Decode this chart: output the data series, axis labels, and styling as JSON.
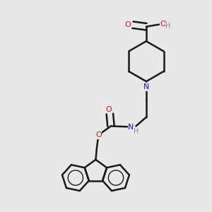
{
  "bg_color": "#e8e8e8",
  "bond_color": "#1a1a1a",
  "N_color": "#1010dd",
  "O_color": "#dd1010",
  "H_color": "#888888",
  "bond_width": 1.8,
  "figsize": [
    3.0,
    3.0
  ],
  "dpi": 100,
  "xlim": [
    0.05,
    0.95
  ],
  "ylim": [
    0.03,
    0.97
  ]
}
